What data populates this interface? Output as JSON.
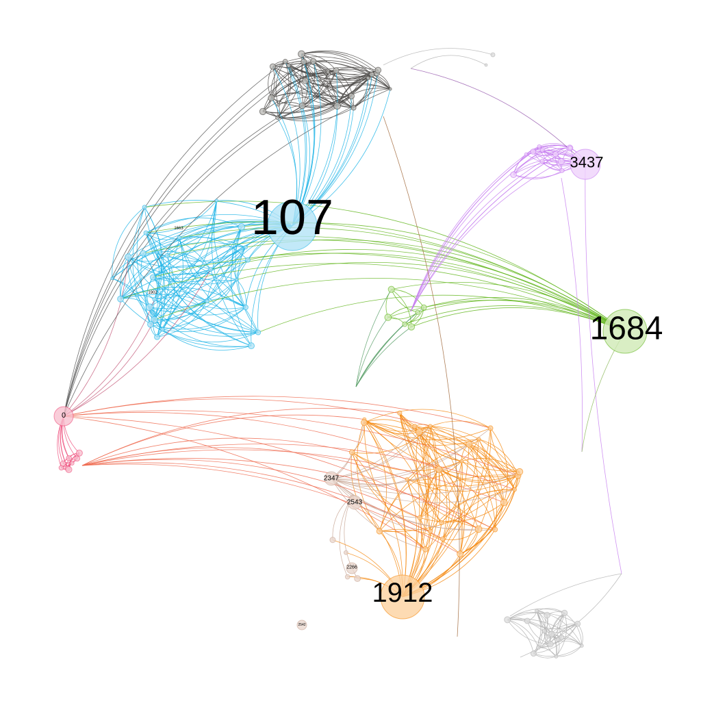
{
  "clusters": [
    {
      "id": "dark",
      "color": "#4a4845",
      "fill": "#bdbbb8"
    },
    {
      "id": "blue",
      "color": "#1fb4e6",
      "fill": "#b3e4f6"
    },
    {
      "id": "purple",
      "color": "#c77ff0",
      "fill": "#efd2fb"
    },
    {
      "id": "green",
      "color": "#63b61f",
      "fill": "#cfeab5"
    },
    {
      "id": "orange",
      "color": "#f58a12",
      "fill": "#fcd2a0"
    },
    {
      "id": "pink",
      "color": "#ef4f7c",
      "fill": "#f8c0cf"
    },
    {
      "id": "tan",
      "color": "#c9a898",
      "fill": "#ead8cf"
    },
    {
      "id": "gray",
      "color": "#b3b3b3",
      "fill": "#dddddd"
    }
  ],
  "labels": {
    "n107": "107",
    "n1684": "1684",
    "n3437": "3437",
    "n1912": "1912",
    "n0": "0",
    "n2347": "2347",
    "n2543": "2543",
    "n2266": "2266",
    "n2542": "2542",
    "n1663": "1663",
    "n1902": "1902"
  }
}
